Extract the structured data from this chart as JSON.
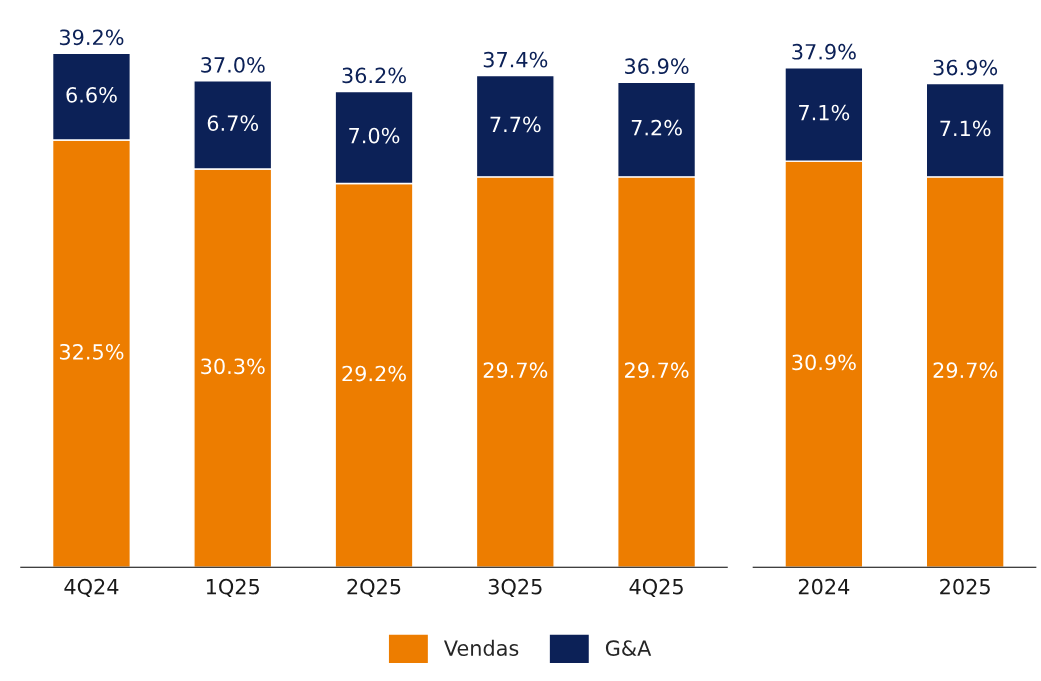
{
  "chart_data": [
    {
      "type": "bar",
      "stacked": true,
      "categories": [
        "4Q24",
        "1Q25",
        "2Q25",
        "3Q25",
        "4Q25"
      ],
      "legend": "bottom",
      "grid": false,
      "series": [
        {
          "name": "Vendas",
          "color": "#ed7d00",
          "values": [
            32.5,
            30.3,
            29.2,
            29.7,
            29.7
          ],
          "value_labels": [
            "32.5%",
            "30.3%",
            "29.2%",
            "29.7%",
            "29.7%"
          ]
        },
        {
          "name": "G&A",
          "color": "#0c2157",
          "values": [
            6.6,
            6.7,
            7.0,
            7.7,
            7.2
          ],
          "value_labels": [
            "6.6%",
            "6.7%",
            "7.0%",
            "7.7%",
            "7.2%"
          ]
        }
      ],
      "totals": [
        "39.2%",
        "37.0%",
        "36.2%",
        "37.4%",
        "36.9%"
      ]
    },
    {
      "type": "bar",
      "stacked": true,
      "categories": [
        "2024",
        "2025"
      ],
      "grid": false,
      "series": [
        {
          "color": "#ed7d00",
          "values": [
            30.9,
            29.7
          ],
          "value_labels": [
            "30.9%",
            "29.7%"
          ]
        },
        {
          "color": "#0c2157",
          "values": [
            7.1,
            7.1
          ],
          "value_labels": [
            "7.1%",
            "7.1%"
          ]
        }
      ],
      "totals": [
        "37.9%",
        "36.9%"
      ]
    }
  ]
}
